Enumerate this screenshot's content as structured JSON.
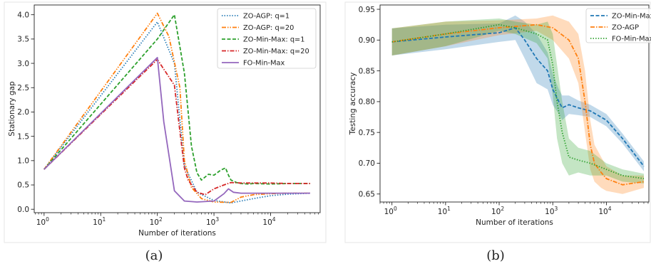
{
  "chart_data": [
    {
      "type": "line",
      "caption": "(a)",
      "xlabel": "Number of iterations",
      "ylabel": "Stationary gap",
      "x_scale": "log",
      "xlim": [
        0.67,
        75000
      ],
      "ylim": [
        -0.07,
        4.2
      ],
      "x_ticks": [
        {
          "value": 1,
          "base": "10",
          "exp": "0"
        },
        {
          "value": 10,
          "base": "10",
          "exp": "1"
        },
        {
          "value": 100,
          "base": "10",
          "exp": "2"
        },
        {
          "value": 1000,
          "base": "10",
          "exp": "3"
        },
        {
          "value": 10000,
          "base": "10",
          "exp": "4"
        }
      ],
      "y_ticks": [
        "0.0",
        "0.5",
        "1.0",
        "1.5",
        "2.0",
        "2.5",
        "3.0",
        "3.5",
        "4.0"
      ],
      "legend_position": "top-right",
      "grid": false,
      "series": [
        {
          "name": "ZO-AGP: q=1",
          "color": "#1f77b4",
          "dash": "dotted",
          "x": [
            1,
            100,
            200,
            300,
            500,
            1000,
            2000,
            5000,
            10000,
            20000,
            50000
          ],
          "y": [
            0.82,
            3.85,
            3.0,
            0.9,
            0.35,
            0.18,
            0.13,
            0.22,
            0.28,
            0.31,
            0.33
          ]
        },
        {
          "name": "ZO-AGP: q=20",
          "color": "#ff7f0e",
          "dash": "dashdotdot",
          "x": [
            1,
            100,
            160,
            250,
            300,
            400,
            600,
            1000,
            2000,
            3000,
            5000,
            10000,
            20000,
            50000
          ],
          "y": [
            0.82,
            4.03,
            3.55,
            2.5,
            1.0,
            0.45,
            0.22,
            0.15,
            0.14,
            0.25,
            0.3,
            0.32,
            0.33,
            0.33
          ]
        },
        {
          "name": "ZO-Min-Max: q=1",
          "color": "#2ca02c",
          "dash": "dashed",
          "x": [
            1,
            100,
            200,
            300,
            400,
            500,
            600,
            800,
            1000,
            1300,
            1600,
            1800,
            2000,
            2500,
            3000,
            4000,
            5000,
            10000,
            20000,
            50000
          ],
          "y": [
            0.82,
            3.5,
            4.0,
            2.8,
            1.3,
            0.75,
            0.6,
            0.72,
            0.7,
            0.8,
            0.85,
            0.7,
            0.6,
            0.55,
            0.53,
            0.52,
            0.53,
            0.52,
            0.53,
            0.53
          ]
        },
        {
          "name": "ZO-Min-Max: q=20",
          "color": "#d62728",
          "dash": "dashdot",
          "x": [
            1,
            100,
            200,
            250,
            300,
            350,
            500,
            700,
            1000,
            1500,
            2000,
            3000,
            5000,
            10000,
            20000,
            50000
          ],
          "y": [
            0.82,
            3.08,
            2.55,
            1.6,
            0.85,
            0.6,
            0.35,
            0.3,
            0.42,
            0.5,
            0.55,
            0.54,
            0.54,
            0.54,
            0.53,
            0.53
          ]
        },
        {
          "name": "FO-Min-Max",
          "color": "#9467bd",
          "dash": "solid",
          "x": [
            1,
            100,
            130,
            200,
            300,
            500,
            1000,
            1500,
            1800,
            2200,
            3000,
            5000,
            10000,
            50000
          ],
          "y": [
            0.82,
            3.12,
            1.8,
            0.38,
            0.17,
            0.15,
            0.17,
            0.32,
            0.42,
            0.35,
            0.33,
            0.33,
            0.33,
            0.33
          ]
        }
      ]
    },
    {
      "type": "line",
      "caption": "(b)",
      "xlabel": "Number of iterations",
      "ylabel": "Testing accuracy",
      "x_scale": "log",
      "xlim": [
        0.6,
        62000
      ],
      "ylim": [
        0.637,
        0.957
      ],
      "x_ticks": [
        {
          "value": 1,
          "base": "10",
          "exp": "0"
        },
        {
          "value": 10,
          "base": "10",
          "exp": "1"
        },
        {
          "value": 100,
          "base": "10",
          "exp": "2"
        },
        {
          "value": 1000,
          "base": "10",
          "exp": "3"
        },
        {
          "value": 10000,
          "base": "10",
          "exp": "4"
        }
      ],
      "y_ticks": [
        "0.65",
        "0.70",
        "0.75",
        "0.80",
        "0.85",
        "0.90",
        "0.95"
      ],
      "legend_position": "top-right",
      "grid": false,
      "series": [
        {
          "name": "ZO-Min-Max",
          "color": "#1f77b4",
          "dash": "dashed",
          "x": [
            1,
            10,
            100,
            200,
            300,
            500,
            800,
            1000,
            1300,
            1500,
            2000,
            3000,
            5000,
            10000,
            20000,
            50000
          ],
          "y": [
            0.897,
            0.905,
            0.912,
            0.92,
            0.9,
            0.87,
            0.85,
            0.82,
            0.8,
            0.79,
            0.795,
            0.79,
            0.785,
            0.77,
            0.74,
            0.695
          ],
          "band": [
            0.022,
            0.02,
            0.015,
            0.02,
            0.03,
            0.04,
            0.03,
            0.025,
            0.02,
            0.02,
            0.015,
            0.012,
            0.01,
            0.01,
            0.008,
            0.008
          ]
        },
        {
          "name": "ZO-AGP",
          "color": "#ff7f0e",
          "dash": "dashdot",
          "x": [
            1,
            10,
            100,
            500,
            1000,
            2000,
            3000,
            4000,
            5000,
            6000,
            8000,
            10000,
            20000,
            50000
          ],
          "y": [
            0.897,
            0.91,
            0.92,
            0.925,
            0.92,
            0.9,
            0.87,
            0.8,
            0.73,
            0.7,
            0.685,
            0.675,
            0.665,
            0.67
          ],
          "band": [
            0.022,
            0.02,
            0.012,
            0.01,
            0.02,
            0.03,
            0.04,
            0.05,
            0.04,
            0.03,
            0.025,
            0.02,
            0.015,
            0.01
          ]
        },
        {
          "name": "FO-Min-Max",
          "color": "#2ca02c",
          "dash": "dotted",
          "x": [
            1,
            10,
            100,
            200,
            500,
            800,
            1000,
            1200,
            1500,
            2000,
            3000,
            5000,
            10000,
            20000,
            50000
          ],
          "y": [
            0.897,
            0.91,
            0.925,
            0.92,
            0.91,
            0.9,
            0.86,
            0.8,
            0.75,
            0.71,
            0.705,
            0.7,
            0.69,
            0.68,
            0.675
          ],
          "band": [
            0.022,
            0.02,
            0.01,
            0.01,
            0.015,
            0.03,
            0.05,
            0.06,
            0.05,
            0.03,
            0.02,
            0.02,
            0.01,
            0.01,
            0.008
          ]
        }
      ]
    }
  ]
}
